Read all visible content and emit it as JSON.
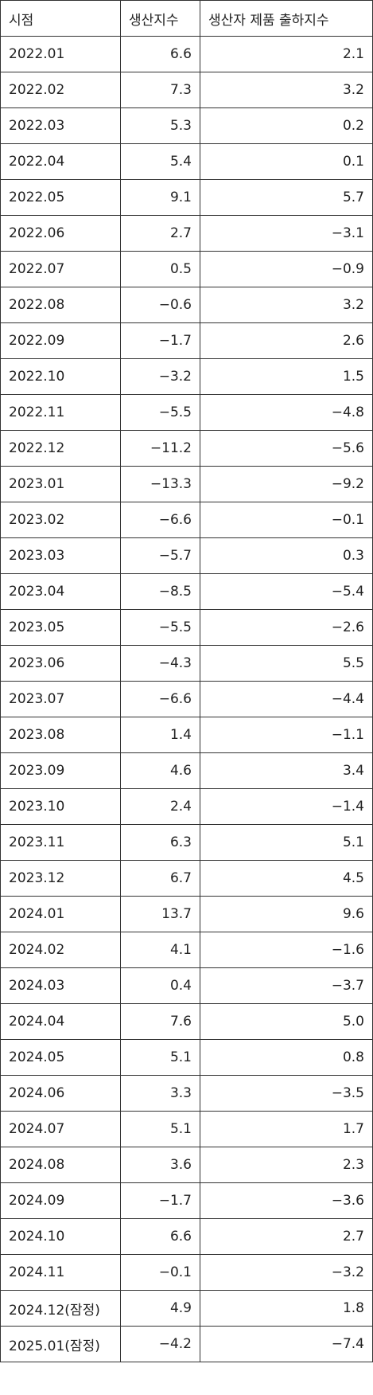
{
  "table": {
    "header": [
      "시점",
      "생산지수",
      "생산자 제품 출하지수"
    ],
    "rows": [
      [
        "2022.01",
        "6.6",
        "2.1"
      ],
      [
        "2022.02",
        "7.3",
        "3.2"
      ],
      [
        "2022.03",
        "5.3",
        "0.2"
      ],
      [
        "2022.04",
        "5.4",
        "0.1"
      ],
      [
        "2022.05",
        "9.1",
        "5.7"
      ],
      [
        "2022.06",
        "2.7",
        "−3.1"
      ],
      [
        "2022.07",
        "0.5",
        "−0.9"
      ],
      [
        "2022.08",
        "−0.6",
        "3.2"
      ],
      [
        "2022.09",
        "−1.7",
        "2.6"
      ],
      [
        "2022.10",
        "−3.2",
        "1.5"
      ],
      [
        "2022.11",
        "−5.5",
        "−4.8"
      ],
      [
        "2022.12",
        "−11.2",
        "−5.6"
      ],
      [
        "2023.01",
        "−13.3",
        "−9.2"
      ],
      [
        "2023.02",
        "−6.6",
        "−0.1"
      ],
      [
        "2023.03",
        "−5.7",
        "0.3"
      ],
      [
        "2023.04",
        "−8.5",
        "−5.4"
      ],
      [
        "2023.05",
        "−5.5",
        "−2.6"
      ],
      [
        "2023.06",
        "−4.3",
        "5.5"
      ],
      [
        "2023.07",
        "−6.6",
        "−4.4"
      ],
      [
        "2023.08",
        "1.4",
        "−1.1"
      ],
      [
        "2023.09",
        "4.6",
        "3.4"
      ],
      [
        "2023.10",
        "2.4",
        "−1.4"
      ],
      [
        "2023.11",
        "6.3",
        "5.1"
      ],
      [
        "2023.12",
        "6.7",
        "4.5"
      ],
      [
        "2024.01",
        "13.7",
        "9.6"
      ],
      [
        "2024.02",
        "4.1",
        "−1.6"
      ],
      [
        "2024.03",
        "0.4",
        "−3.7"
      ],
      [
        "2024.04",
        "7.6",
        "5.0"
      ],
      [
        "2024.05",
        "5.1",
        "0.8"
      ],
      [
        "2024.06",
        "3.3",
        "−3.5"
      ],
      [
        "2024.07",
        "5.1",
        "1.7"
      ],
      [
        "2024.08",
        "3.6",
        "2.3"
      ],
      [
        "2024.09",
        "−1.7",
        "−3.6"
      ],
      [
        "2024.10",
        "6.6",
        "2.7"
      ],
      [
        "2024.11",
        "−0.1",
        "−3.2"
      ],
      [
        "2024.12(잠정)",
        "4.9",
        "1.8"
      ],
      [
        "2025.01(잠정)",
        "−4.2",
        "−7.4"
      ]
    ]
  }
}
